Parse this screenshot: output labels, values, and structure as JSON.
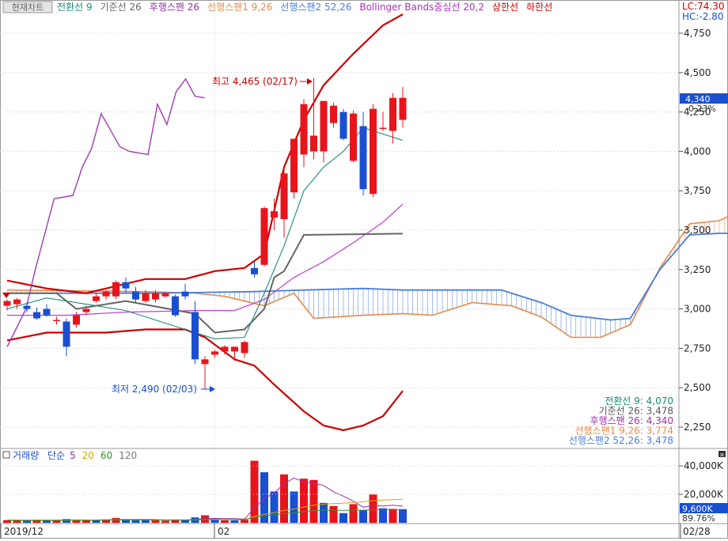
{
  "header": {
    "button_label": "현재차트",
    "indicators": [
      {
        "text": "전환선 9",
        "color": "#1a8a7a"
      },
      {
        "text": "기준선 26",
        "color": "#666666"
      },
      {
        "text": "후행스팬 26",
        "color": "#9b2fae"
      },
      {
        "text": "선행스팬1 9,26",
        "color": "#e8894a"
      },
      {
        "text": "선행스팬2 52,26",
        "color": "#4a7fd8"
      },
      {
        "text": "Bollinger Bands중심선 20,2",
        "color": "#b030c0"
      },
      {
        "text": "상한선",
        "color": "#cc0000"
      },
      {
        "text": "하한선",
        "color": "#cc0000"
      }
    ],
    "lc": "LC:74.30",
    "hc": "HC:-2.80"
  },
  "annotations": {
    "high": "최고 4,465 (02/17)",
    "low": "최저 2,490 (02/03)"
  },
  "price_axis": {
    "ticks": [
      "4,750",
      "4,500",
      "4,250",
      "4,000",
      "3,750",
      "3,500",
      "3,250",
      "3,000",
      "2,750",
      "2,500",
      "2,250"
    ],
    "current_price": "4,340",
    "current_change": "-0.23%"
  },
  "legend_values": [
    {
      "text": "전환선 9: 4,070",
      "color": "#1a8a7a"
    },
    {
      "text": "기준선 26: 3,478",
      "color": "#555555"
    },
    {
      "text": "후행스팬 26: 4,340",
      "color": "#9b2fae"
    },
    {
      "text": "선행스팬1 9,26: 3,774",
      "color": "#e8894a"
    },
    {
      "text": "선행스팬2 52,26: 3,478",
      "color": "#4a7fd8"
    }
  ],
  "volume_header": {
    "title": "거래량",
    "method": "단순",
    "periods": [
      {
        "text": "5",
        "color": "#9b2fae"
      },
      {
        "text": "20",
        "color": "#d4a800"
      },
      {
        "text": "60",
        "color": "#2a9a2a"
      },
      {
        "text": "120",
        "color": "#777777"
      }
    ]
  },
  "volume_axis": {
    "ticks": [
      "40,000K",
      "20,000K"
    ],
    "current_volume": "9,600K",
    "current_pct": "89.76%"
  },
  "date_axis": {
    "labels": [
      "2019/12",
      "02",
      "02/28"
    ]
  },
  "colors": {
    "up": "#e8141c",
    "down": "#1a4fd0",
    "grid": "#c8c8c8",
    "cloud": "#4a7fd8"
  },
  "chart_data": {
    "type": "candlestick",
    "ylim": [
      2150,
      4900
    ],
    "candles": [
      {
        "o": 3020,
        "h": 3060,
        "l": 2990,
        "c": 3050
      },
      {
        "o": 3030,
        "h": 3070,
        "l": 3000,
        "c": 3060
      },
      {
        "o": 3020,
        "h": 3040,
        "l": 2980,
        "c": 3000
      },
      {
        "o": 2980,
        "h": 3010,
        "l": 2930,
        "c": 2940
      },
      {
        "o": 3000,
        "h": 3030,
        "l": 2950,
        "c": 2960
      },
      {
        "o": 2930,
        "h": 2950,
        "l": 2900,
        "c": 2930
      },
      {
        "o": 2920,
        "h": 2940,
        "l": 2700,
        "c": 2760
      },
      {
        "o": 2900,
        "h": 2980,
        "l": 2880,
        "c": 2960
      },
      {
        "o": 2980,
        "h": 3020,
        "l": 2960,
        "c": 3000
      },
      {
        "o": 3050,
        "h": 3100,
        "l": 3040,
        "c": 3080
      },
      {
        "o": 3080,
        "h": 3120,
        "l": 3060,
        "c": 3110
      },
      {
        "o": 3080,
        "h": 3180,
        "l": 3060,
        "c": 3170
      },
      {
        "o": 3170,
        "h": 3200,
        "l": 3100,
        "c": 3130
      },
      {
        "o": 3110,
        "h": 3140,
        "l": 3040,
        "c": 3060
      },
      {
        "o": 3050,
        "h": 3120,
        "l": 3040,
        "c": 3100
      },
      {
        "o": 3060,
        "h": 3120,
        "l": 3040,
        "c": 3100
      },
      {
        "o": 3080,
        "h": 3110,
        "l": 3070,
        "c": 3100
      },
      {
        "o": 3080,
        "h": 3090,
        "l": 2950,
        "c": 2960
      },
      {
        "o": 3110,
        "h": 3160,
        "l": 3060,
        "c": 3080
      },
      {
        "o": 2980,
        "h": 3050,
        "l": 2650,
        "c": 2680
      },
      {
        "o": 2650,
        "h": 2700,
        "l": 2490,
        "c": 2680
      },
      {
        "o": 2710,
        "h": 2740,
        "l": 2690,
        "c": 2730
      },
      {
        "o": 2730,
        "h": 2770,
        "l": 2710,
        "c": 2760
      },
      {
        "o": 2730,
        "h": 2760,
        "l": 2670,
        "c": 2760
      },
      {
        "o": 2720,
        "h": 2800,
        "l": 2690,
        "c": 2790
      },
      {
        "o": 3260,
        "h": 3300,
        "l": 3200,
        "c": 3220
      },
      {
        "o": 3280,
        "h": 3650,
        "l": 3270,
        "c": 3640
      },
      {
        "o": 3580,
        "h": 3700,
        "l": 3500,
        "c": 3620
      },
      {
        "o": 3570,
        "h": 3900,
        "l": 3450,
        "c": 3860
      },
      {
        "o": 3740,
        "h": 4080,
        "l": 3700,
        "c": 4080
      },
      {
        "o": 3980,
        "h": 4330,
        "l": 3900,
        "c": 4300
      },
      {
        "o": 4000,
        "h": 4465,
        "l": 3950,
        "c": 4100
      },
      {
        "o": 4000,
        "h": 4310,
        "l": 3930,
        "c": 4320
      },
      {
        "o": 4180,
        "h": 4310,
        "l": 4150,
        "c": 4290
      },
      {
        "o": 4250,
        "h": 4270,
        "l": 4070,
        "c": 4080
      },
      {
        "o": 3940,
        "h": 4260,
        "l": 3930,
        "c": 4240
      },
      {
        "o": 4160,
        "h": 4250,
        "l": 3720,
        "c": 3760
      },
      {
        "o": 3730,
        "h": 4300,
        "l": 3710,
        "c": 4270
      },
      {
        "o": 4150,
        "h": 4250,
        "l": 4130,
        "c": 4150
      },
      {
        "o": 4130,
        "h": 4370,
        "l": 4050,
        "c": 4340
      },
      {
        "o": 4200,
        "h": 4410,
        "l": 4150,
        "c": 4340
      }
    ],
    "volume": [
      {
        "v": 1.9,
        "up": true
      },
      {
        "v": 1.7,
        "up": true
      },
      {
        "v": 1.5,
        "up": false
      },
      {
        "v": 2.1,
        "up": true
      },
      {
        "v": 1.9,
        "up": false
      },
      {
        "v": 1.5,
        "up": true
      },
      {
        "v": 2.6,
        "up": false
      },
      {
        "v": 1.9,
        "up": true
      },
      {
        "v": 1.7,
        "up": true
      },
      {
        "v": 2.1,
        "up": false
      },
      {
        "v": 2.3,
        "up": true
      },
      {
        "v": 3.4,
        "up": true
      },
      {
        "v": 2.1,
        "up": false
      },
      {
        "v": 1.9,
        "up": false
      },
      {
        "v": 2.1,
        "up": false
      },
      {
        "v": 1.9,
        "up": true
      },
      {
        "v": 1.5,
        "up": true
      },
      {
        "v": 2.3,
        "up": true
      },
      {
        "v": 1.9,
        "up": false
      },
      {
        "v": 3.8,
        "up": false
      },
      {
        "v": 5.3,
        "up": true
      },
      {
        "v": 2.3,
        "up": false
      },
      {
        "v": 1.7,
        "up": true
      },
      {
        "v": 1.7,
        "up": false
      },
      {
        "v": 2.1,
        "up": true
      },
      {
        "v": 43.6,
        "up": true
      },
      {
        "v": 35.5,
        "up": false
      },
      {
        "v": 22.0,
        "up": false
      },
      {
        "v": 34.0,
        "up": true
      },
      {
        "v": 22.0,
        "up": false
      },
      {
        "v": 31.0,
        "up": true
      },
      {
        "v": 30.1,
        "up": true
      },
      {
        "v": 14.0,
        "up": false
      },
      {
        "v": 11.8,
        "up": true
      },
      {
        "v": 6.8,
        "up": false
      },
      {
        "v": 13.1,
        "up": true
      },
      {
        "v": 8.9,
        "up": false
      },
      {
        "v": 19.9,
        "up": true
      },
      {
        "v": 10.2,
        "up": false
      },
      {
        "v": 9.8,
        "up": true
      },
      {
        "v": 9.6,
        "up": false
      }
    ],
    "volume_ylim": [
      0,
      48000
    ],
    "conversion_line": [
      [
        0,
        3000
      ],
      [
        4,
        3070
      ],
      [
        9,
        3020
      ],
      [
        12,
        2990
      ],
      [
        19,
        2850
      ],
      [
        21,
        2810
      ],
      [
        24,
        2820
      ],
      [
        26,
        3100
      ],
      [
        28,
        3400
      ],
      [
        30,
        3750
      ],
      [
        32,
        3900
      ],
      [
        34,
        4000
      ],
      [
        36,
        4150
      ],
      [
        40,
        4070
      ]
    ],
    "base_line": [
      [
        0,
        3100
      ],
      [
        5,
        3100
      ],
      [
        7,
        3000
      ],
      [
        12,
        3050
      ],
      [
        19,
        2970
      ],
      [
        21,
        2850
      ],
      [
        24,
        2870
      ],
      [
        26,
        3000
      ],
      [
        27,
        3200
      ],
      [
        28,
        3240
      ],
      [
        30,
        3470
      ],
      [
        40,
        3478
      ]
    ],
    "bollinger_mid": [
      [
        0,
        2960
      ],
      [
        6,
        2960
      ],
      [
        12,
        2980
      ],
      [
        19,
        2990
      ],
      [
        23,
        2990
      ],
      [
        26,
        3060
      ],
      [
        29,
        3200
      ],
      [
        32,
        3300
      ],
      [
        35,
        3420
      ],
      [
        38,
        3550
      ],
      [
        40,
        3665
      ]
    ],
    "bollinger_upper": [
      [
        0,
        3180
      ],
      [
        4,
        3130
      ],
      [
        8,
        3100
      ],
      [
        14,
        3190
      ],
      [
        18,
        3190
      ],
      [
        21,
        3240
      ],
      [
        24,
        3260
      ],
      [
        26,
        3350
      ],
      [
        28,
        3900
      ],
      [
        30,
        4200
      ],
      [
        32,
        4420
      ],
      [
        35,
        4620
      ],
      [
        38,
        4800
      ],
      [
        40,
        4870
      ]
    ],
    "bollinger_lower": [
      [
        0,
        2800
      ],
      [
        4,
        2850
      ],
      [
        10,
        2850
      ],
      [
        14,
        2870
      ],
      [
        18,
        2870
      ],
      [
        20,
        2820
      ],
      [
        23,
        2680
      ],
      [
        25,
        2640
      ],
      [
        27,
        2520
      ],
      [
        30,
        2350
      ],
      [
        32,
        2260
      ],
      [
        34,
        2230
      ],
      [
        36,
        2260
      ],
      [
        38,
        2320
      ],
      [
        40,
        2480
      ]
    ],
    "lagging_span": [
      [
        0,
        2760
      ],
      [
        2,
        3000
      ],
      [
        3,
        3250
      ],
      [
        5,
        3700
      ],
      [
        7,
        3720
      ],
      [
        8,
        3900
      ],
      [
        9,
        4020
      ],
      [
        10,
        4240
      ],
      [
        12,
        4030
      ],
      [
        13,
        4000
      ],
      [
        15,
        3980
      ],
      [
        16,
        4300
      ],
      [
        17,
        4170
      ],
      [
        18,
        4380
      ],
      [
        19,
        4460
      ],
      [
        20,
        4350
      ],
      [
        21,
        4340
      ]
    ],
    "leading_span1": [
      [
        0,
        3120
      ],
      [
        14,
        3110
      ],
      [
        19,
        3100
      ],
      [
        22,
        3080
      ],
      [
        26,
        3020
      ],
      [
        29,
        3100
      ],
      [
        31,
        2940
      ],
      [
        36,
        2960
      ],
      [
        40,
        2970
      ],
      [
        43,
        2960
      ],
      [
        47,
        3040
      ],
      [
        51,
        3020
      ],
      [
        54,
        2950
      ],
      [
        57,
        2820
      ],
      [
        60,
        2820
      ],
      [
        63,
        2900
      ],
      [
        66,
        3260
      ],
      [
        69,
        3540
      ],
      [
        72,
        3560
      ],
      [
        74,
        3620
      ],
      [
        76,
        3740
      ],
      [
        80,
        3770
      ],
      [
        83,
        3770
      ],
      [
        85,
        3780
      ],
      [
        88,
        3760
      ]
    ],
    "leading_span2": [
      [
        0,
        3100
      ],
      [
        15,
        3100
      ],
      [
        25,
        3110
      ],
      [
        30,
        3120
      ],
      [
        36,
        3130
      ],
      [
        40,
        3120
      ],
      [
        50,
        3120
      ],
      [
        54,
        3040
      ],
      [
        57,
        2960
      ],
      [
        61,
        2930
      ],
      [
        63,
        2940
      ],
      [
        66,
        3250
      ],
      [
        69,
        3470
      ],
      [
        72,
        3480
      ],
      [
        78,
        3480
      ],
      [
        88,
        3478
      ]
    ]
  }
}
